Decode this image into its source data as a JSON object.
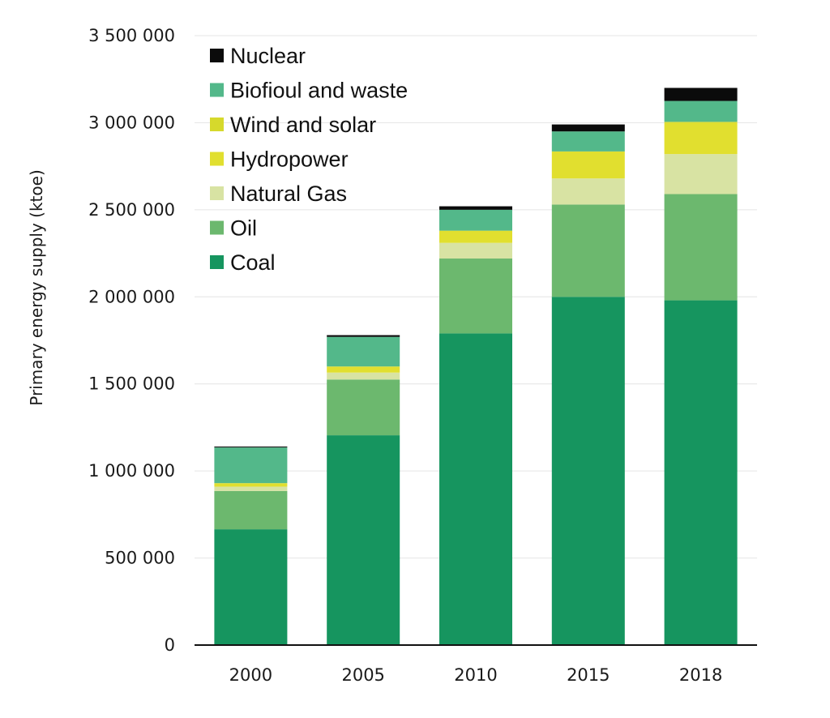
{
  "chart_data": {
    "type": "bar",
    "stacked": true,
    "title": "",
    "xlabel": "",
    "ylabel": "Primary energy supply (ktoe)",
    "ylim": [
      0,
      3500000
    ],
    "yticks": [
      0,
      500000,
      1000000,
      1500000,
      2000000,
      2500000,
      3000000,
      3500000
    ],
    "ytick_labels": [
      "0",
      "500 000",
      "1 000 000",
      "1 500 000",
      "2 000 000",
      "2 500 000",
      "3 000 000",
      "3 500 000"
    ],
    "grid": "horizontal",
    "legend_position": "top-left",
    "categories": [
      "2000",
      "2005",
      "2010",
      "2015",
      "2018"
    ],
    "series": [
      {
        "name": "Coal",
        "color": "#16955f",
        "values": [
          665000,
          1205000,
          1790000,
          2000000,
          1980000
        ]
      },
      {
        "name": "Oil",
        "color": "#6cb86e",
        "values": [
          220000,
          320000,
          430000,
          530000,
          610000
        ]
      },
      {
        "name": "Natural Gas",
        "color": "#d8e3a3",
        "values": [
          25000,
          40000,
          90000,
          150000,
          230000
        ]
      },
      {
        "name": "Hydropower",
        "color": "#e1df2f",
        "values": [
          20000,
          35000,
          70000,
          155000,
          180000
        ]
      },
      {
        "name": "Wind and solar",
        "color": "#d6d92c",
        "values": [
          0,
          0,
          0,
          0,
          5000
        ]
      },
      {
        "name": "Biofioul and waste",
        "color": "#53b88a",
        "values": [
          205000,
          170000,
          120000,
          115000,
          120000
        ]
      },
      {
        "name": "Nuclear",
        "color": "#0b0b0b",
        "values": [
          5000,
          10000,
          20000,
          40000,
          75000
        ]
      }
    ],
    "legend_order": [
      "Nuclear",
      "Biofioul and waste",
      "Wind and solar",
      "Hydropower",
      "Natural Gas",
      "Oil",
      "Coal"
    ]
  }
}
